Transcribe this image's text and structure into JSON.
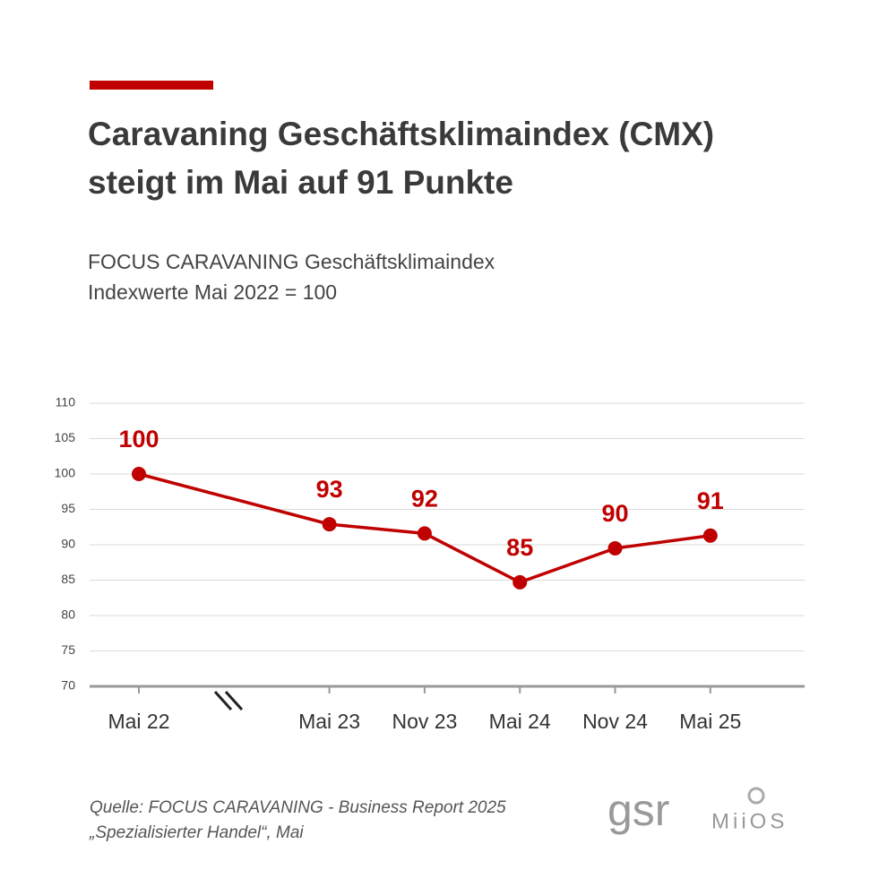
{
  "chart_data": {
    "type": "line",
    "title_lines": [
      "Caravaning Geschäftsklimaindex (CMX)",
      "steigt im Mai auf 91 Punkte"
    ],
    "subtitle_lines": [
      "FOCUS CARAVANING Geschäftsklimaindex",
      "Indexwerte Mai 2022 = 100"
    ],
    "categories": [
      "Mai 22",
      "Mai 23",
      "Nov 23",
      "Mai 24",
      "Nov 24",
      "Mai 25"
    ],
    "series": [
      {
        "color": "#c00000",
        "values": [
          100,
          92.9,
          91.6,
          84.7,
          89.5,
          91.3
        ],
        "value_labels": [
          "100",
          "93",
          "92",
          "85",
          "90",
          "91"
        ]
      }
    ],
    "ylim": [
      70,
      110
    ],
    "yticks": [
      70,
      75,
      80,
      85,
      90,
      95,
      100,
      105,
      110
    ],
    "grid": true,
    "source_lines": [
      "Quelle: FOCUS CARAVANING - Business Report 2025",
      "„Spezialisierter Handel“, Mai"
    ],
    "logos": [
      "gsr",
      "MiiOS"
    ]
  }
}
